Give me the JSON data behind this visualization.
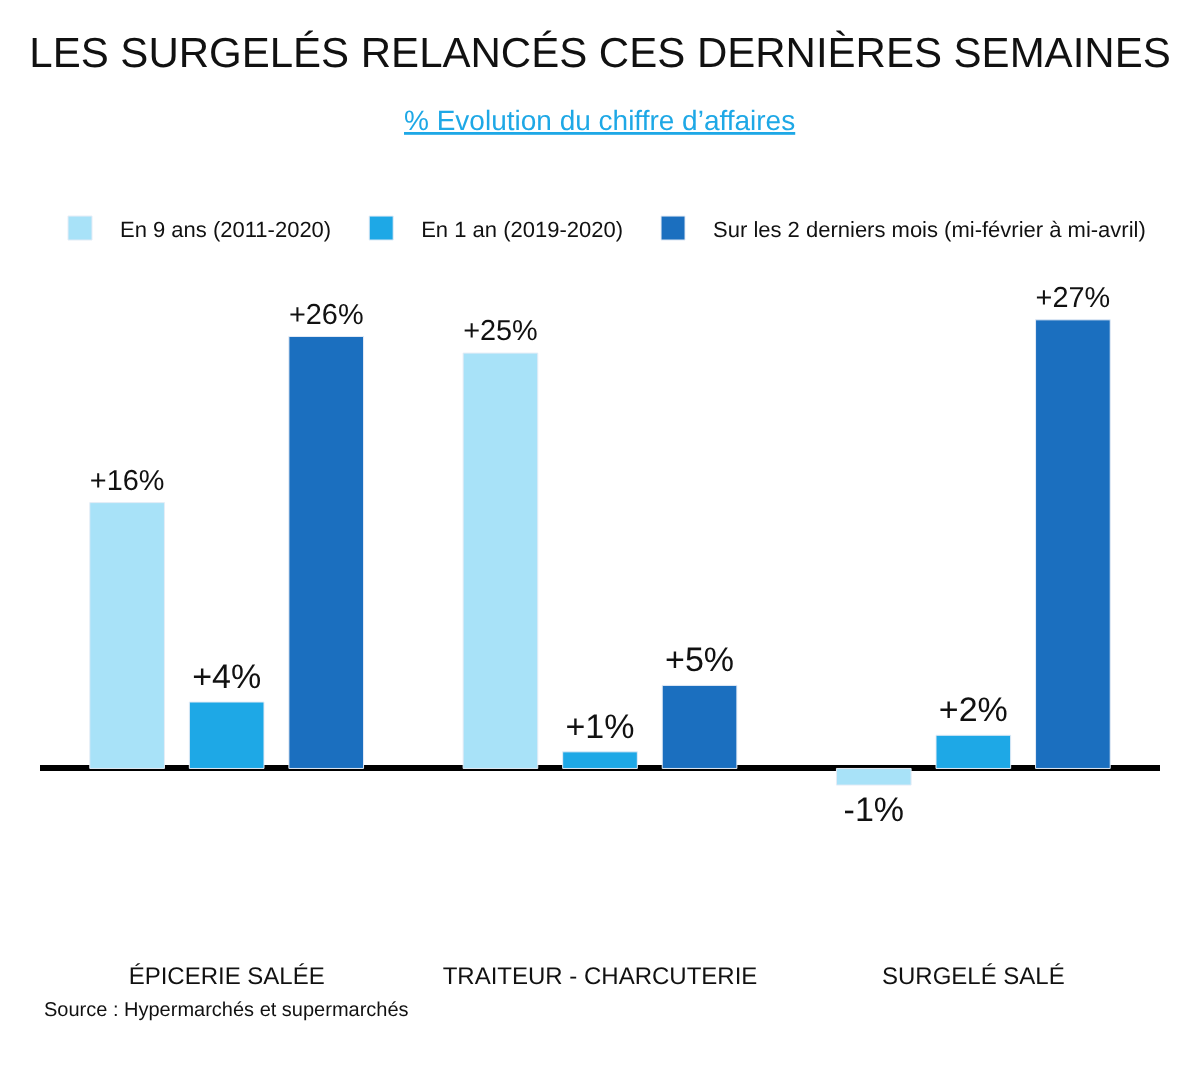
{
  "chart_data": {
    "type": "bar",
    "title": "LES SURGELÉS RELANCÉS CES DERNIÈRES SEMAINES",
    "subtitle": "% Evolution du chiffre d’affaires",
    "categories": [
      "ÉPICERIE SALÉE",
      "TRAITEUR - CHARCUTERIE",
      "SURGELÉ SALÉ"
    ],
    "series": [
      {
        "name": "En 9 ans (2011-2020)",
        "color": "#a8e2f8",
        "values": [
          16,
          25,
          -1
        ],
        "value_labels": [
          "+16%",
          "+25%",
          "-1%"
        ]
      },
      {
        "name": "En 1 an (2019-2020)",
        "color": "#1ea8e6",
        "values": [
          4,
          1,
          2
        ],
        "value_labels": [
          "+4%",
          "+1%",
          "+2%"
        ]
      },
      {
        "name": "Sur les 2 derniers mois (mi-février à mi-avril)",
        "color": "#1b6fbf",
        "values": [
          26,
          5,
          27
        ],
        "value_labels": [
          "+26%",
          "+5%",
          "+27%"
        ]
      }
    ],
    "legend": "top left",
    "annotations": [
      "Source : Hypermarchés et supermarchés"
    ]
  }
}
